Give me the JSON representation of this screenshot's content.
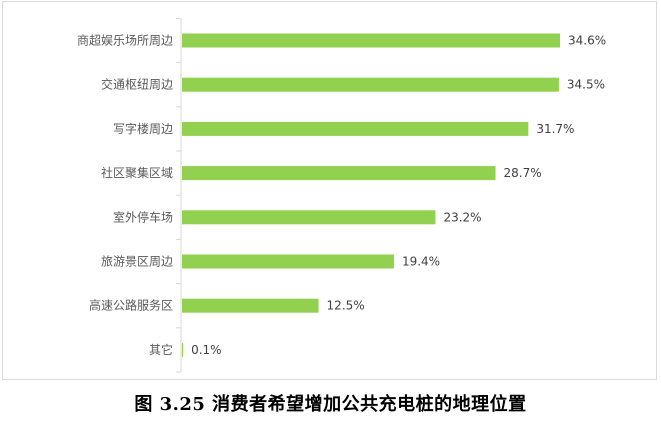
{
  "caption": "图 3.25 消费者希望增加公共充电桩的地理位置",
  "chart_data": {
    "type": "bar",
    "orientation": "horizontal",
    "categories": [
      "商超娱乐场所周边",
      "交通枢纽周边",
      "写字楼周边",
      "社区聚集区域",
      "室外停车场",
      "旅游景区周边",
      "高速公路服务区",
      "其它"
    ],
    "values": [
      34.6,
      34.5,
      31.7,
      28.7,
      23.2,
      19.4,
      12.5,
      0.1
    ],
    "value_labels": [
      "34.6%",
      "34.5%",
      "31.7%",
      "28.7%",
      "23.2%",
      "19.4%",
      "12.5%",
      "0.1%"
    ],
    "unit": "%",
    "xlim": [
      0,
      38
    ],
    "grid": false,
    "bar_color": "#92d050",
    "axis_color": "#d9d9d9"
  }
}
